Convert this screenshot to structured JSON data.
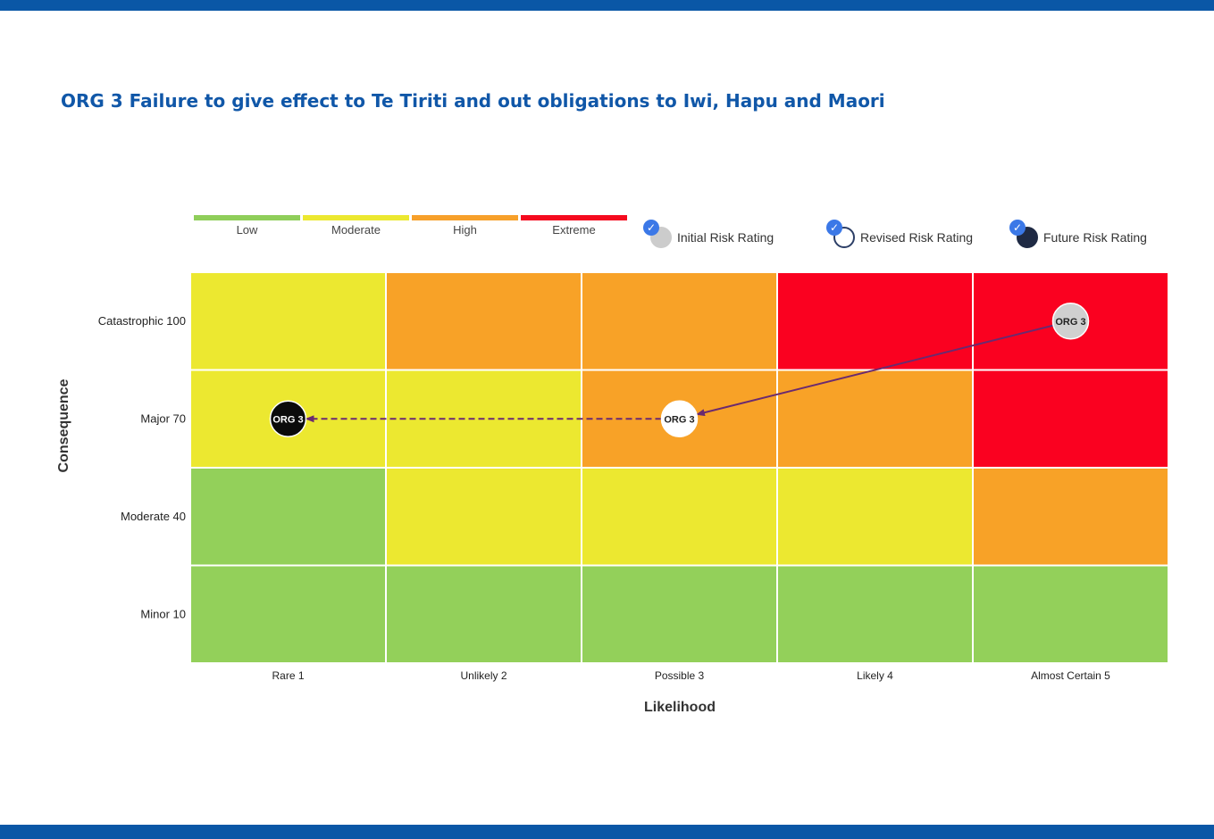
{
  "title": "ORG 3 Failure to give effect to Te Tiriti and out obligations to Iwi, Hapu and Maori",
  "colors": {
    "band": "#0a57a6",
    "title": "#1057a8",
    "arrow": "#6b2a6f"
  },
  "legend": {
    "levels": [
      {
        "label": "Low",
        "color": "#8fce5a"
      },
      {
        "label": "Moderate",
        "color": "#ece830"
      },
      {
        "label": "High",
        "color": "#f7a02a"
      },
      {
        "label": "Extreme",
        "color": "#f50a1e"
      }
    ],
    "ratings": [
      {
        "label": "Initial Risk Rating",
        "fill": "#cccccc",
        "border": "#cccccc"
      },
      {
        "label": "Revised Risk Rating",
        "fill": "#ffffff",
        "border": "#2c3e66"
      },
      {
        "label": "Future Risk Rating",
        "fill": "#1f2a44",
        "border": "#1f2a44"
      }
    ]
  },
  "chart_data": {
    "type": "heatmap",
    "title": "ORG 3 Failure to give effect to Te Tiriti and out obligations to Iwi, Hapu and Maori",
    "xlabel": "Likelihood",
    "ylabel": "Consequence",
    "x_categories": [
      "Rare 1",
      "Unlikely 2",
      "Possible 3",
      "Likely 4",
      "Almost Certain 5"
    ],
    "y_categories": [
      "Catastrophic 100",
      "Major 70",
      "Moderate 40",
      "Minor 10"
    ],
    "cell_levels": [
      [
        "Moderate",
        "High",
        "High",
        "Extreme",
        "Extreme"
      ],
      [
        "Moderate",
        "Moderate",
        "High",
        "High",
        "Extreme"
      ],
      [
        "Low",
        "Moderate",
        "Moderate",
        "Moderate",
        "High"
      ],
      [
        "Low",
        "Low",
        "Low",
        "Low",
        "Low"
      ]
    ],
    "level_colors": {
      "Low": "#93d05a",
      "Moderate": "#ece830",
      "High": "#f8a227",
      "Extreme": "#fa0120"
    },
    "markers": [
      {
        "rating": "Initial",
        "label": "ORG 3",
        "likelihood": "Almost Certain 5",
        "consequence": "Catastrophic 100",
        "fill": "#d0d0d0",
        "text_color": "#222222"
      },
      {
        "rating": "Revised",
        "label": "ORG 3",
        "likelihood": "Possible 3",
        "consequence": "Major 70",
        "fill": "#ffffff",
        "text_color": "#222222"
      },
      {
        "rating": "Future",
        "label": "ORG 3",
        "likelihood": "Rare 1",
        "consequence": "Major 70",
        "fill": "#0b0b0b",
        "text_color": "#ffffff"
      }
    ],
    "arrows": [
      {
        "from": "Initial",
        "to": "Revised",
        "style": "solid"
      },
      {
        "from": "Revised",
        "to": "Future",
        "style": "dashed"
      }
    ]
  }
}
